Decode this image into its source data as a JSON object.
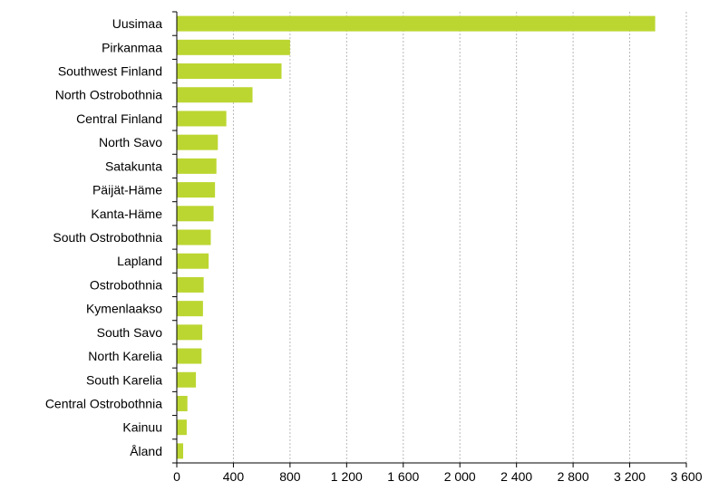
{
  "chart_data": {
    "type": "bar",
    "orientation": "horizontal",
    "categories": [
      "Uusimaa",
      "Pirkanmaa",
      "Southwest Finland",
      "North Ostrobothnia",
      "Central Finland",
      "North Savo",
      "Satakunta",
      "Päijät-Häme",
      "Kanta-Häme",
      "South Ostrobothnia",
      "Lapland",
      "Ostrobothnia",
      "Kymenlaakso",
      "South Savo",
      "North Karelia",
      "South Karelia",
      "Central Ostrobothnia",
      "Kainuu",
      "Åland"
    ],
    "values": [
      3380,
      800,
      740,
      535,
      350,
      290,
      280,
      270,
      260,
      240,
      225,
      190,
      185,
      180,
      175,
      135,
      75,
      70,
      45
    ],
    "xlim": [
      0,
      3600
    ],
    "xticks": [
      0,
      400,
      800,
      1200,
      1600,
      2000,
      2400,
      2800,
      3200,
      3600
    ],
    "xtick_labels": [
      "0",
      "400",
      "800",
      "1 200",
      "1 600",
      "2 000",
      "2 400",
      "2 800",
      "3 200",
      "3 600"
    ],
    "grid": "vertical dashed",
    "title": "",
    "xlabel": "",
    "ylabel": "",
    "colors": {
      "bar": "#bcd631",
      "grid": "#b8b8b8",
      "axis": "#000000",
      "text": "#000000"
    }
  }
}
